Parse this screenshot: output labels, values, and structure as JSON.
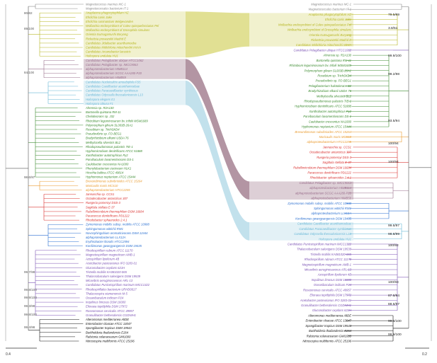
{
  "palette": {
    "olive": "#b5b51e",
    "purple": "#7b52b4",
    "green": "#3a8a2e",
    "lightblue": "#66b6d6",
    "orange": "#e99a2e",
    "red": "#d9302e",
    "blue": "#2a6fd0",
    "mauve": "#9a6e8c",
    "teal": "#2e8c86",
    "gray": "#8a8a8a",
    "black": "#111111"
  },
  "scale_bars": {
    "left": "0.4",
    "right": "0.2"
  },
  "support_labels": {
    "left": [
      "80/82",
      "89/100",
      "84/100",
      "98.6/97",
      "99.7/99",
      "99.8/100",
      "99.9/100",
      "99.3/99",
      "99.8/100",
      "99.4/98"
    ],
    "right": [
      "79.5/89",
      "3.8/51",
      "99.9/100",
      "99.2/98",
      "93.5/94",
      "100/94",
      "100/94",
      "99.6/97",
      "98.8/99",
      "100/92",
      "100/93",
      "87.6/94",
      "88.6/97",
      "99.8/100",
      "99.9/100"
    ]
  },
  "left_taxa": [
    {
      "name": "Magnetococcus marinus MC-1",
      "c": "gray"
    },
    {
      "name": "Magnetococcales bacterium IT-1",
      "c": "gray"
    },
    {
      "name": "Anaplasma phagocytophilum HZ",
      "c": "olive"
    },
    {
      "name": "Ehrlichia canis Jake",
      "c": "olive"
    },
    {
      "name": "Ehrlichia ruminantium Welgevonden",
      "c": "olive"
    },
    {
      "name": "Wolbachia endosymbiont of Culex quinquefasciatus Pel",
      "c": "olive"
    },
    {
      "name": "Wolbachia endosymbiont of Drosophila simulans",
      "c": "olive"
    },
    {
      "name": "Orientia tsutsugamushi Boryong",
      "c": "olive"
    },
    {
      "name": "Rickettsia prowazekii Madrid E",
      "c": "olive"
    },
    {
      "name": "Candidatus Jidaibacter acanthamoeba",
      "c": "olive"
    },
    {
      "name": "Candidatus Midichloria mitochondrii IricVA",
      "c": "olive"
    },
    {
      "name": "Candidatus Arcanobacter lacustris",
      "c": "olive"
    },
    {
      "name": "Holospora undulata HU1",
      "c": "olive"
    },
    {
      "name": "Candidatus Pelagibacter ubique HTCC1062",
      "c": "mauve"
    },
    {
      "name": "Candidatus Pelagibacter sp. IMCC9063",
      "c": "mauve"
    },
    {
      "name": "alphaproteobacterium HIMB114",
      "c": "mauve"
    },
    {
      "name": "alphaproteobacterium SCGC AAA280-P20",
      "c": "mauve"
    },
    {
      "name": "alphaproteobacterium HIMB59",
      "c": "mauve"
    },
    {
      "name": "Candidatus Nucleicultrix amoebiphila FS5",
      "c": "lightblue"
    },
    {
      "name": "Candidatus Caedibacter acanthamoebae",
      "c": "lightblue"
    },
    {
      "name": "Candidatus Paracaedibacter symbiosus",
      "c": "lightblue"
    },
    {
      "name": "Candidatus Odyssella thessalonicensis L13",
      "c": "lightblue"
    },
    {
      "name": "Holospora elegans E1",
      "c": "lightblue"
    },
    {
      "name": "Holospora obtusa F1",
      "c": "lightblue"
    },
    {
      "name": "Ahrensia sp. R2A130",
      "c": "green"
    },
    {
      "name": "Bartonella quintana RM-11",
      "c": "green"
    },
    {
      "name": "Chelativorans sp. J32",
      "c": "green"
    },
    {
      "name": "Rhizobium leguminosarum bv. trifolii WSM1689",
      "c": "green"
    },
    {
      "name": "Polymorphum gilvum SL003B-26A1",
      "c": "green"
    },
    {
      "name": "Roseibium sp. TrichSKD4",
      "c": "green"
    },
    {
      "name": "Pseudovibrio sp. FO-BEG1",
      "c": "green"
    },
    {
      "name": "Bradyrhizobium elkanii USDA 76",
      "c": "green"
    },
    {
      "name": "Methylocella silvestris BL2",
      "c": "green"
    },
    {
      "name": "Rhodopseudomonas palustris TIE-1",
      "c": "green"
    },
    {
      "name": "Hyphomicrobium denitrificans ATCC 51888",
      "c": "green"
    },
    {
      "name": "Xanthobacter autotrophicus Py2",
      "c": "green"
    },
    {
      "name": "Parvibaculum lavamentivorans DS-1",
      "c": "green"
    },
    {
      "name": "Caulobacter crescentus NA1000",
      "c": "green"
    },
    {
      "name": "Phenylobacterium zucineum HLK1",
      "c": "green"
    },
    {
      "name": "Hirschia baltica ATCC 49814",
      "c": "green"
    },
    {
      "name": "Hyphomonas neptunium ATCC 15444",
      "c": "green"
    },
    {
      "name": "Brevundimonas subvibrioides ATCC 15264",
      "c": "orange"
    },
    {
      "name": "Maricaulis maris MCS10",
      "c": "orange"
    },
    {
      "name": "alphaproteobacterium HTCC2255",
      "c": "orange"
    },
    {
      "name": "Jannaschia sp. CCS1",
      "c": "red"
    },
    {
      "name": "Octadecabacter antarcticus 307",
      "c": "red"
    },
    {
      "name": "Ruegeria pomeroyi DSS-3",
      "c": "red"
    },
    {
      "name": "Sagittula stellata E-37",
      "c": "red"
    },
    {
      "name": "Rubellimicrobium thermophilum DSM 16684",
      "c": "red"
    },
    {
      "name": "Paracoccus denitrificans PD1222",
      "c": "red"
    },
    {
      "name": "Rhodobacter sphaeroides 2.4.1",
      "c": "red"
    },
    {
      "name": "Zymomonas mobilis subsp. mobilis ATCC 10988",
      "c": "blue"
    },
    {
      "name": "Sphingomonas wittichii RW1",
      "c": "blue"
    },
    {
      "name": "Novosphingobium aromaticivorans DSM 12444",
      "c": "blue"
    },
    {
      "name": "alphaproteobacterium LLX12A",
      "c": "blue"
    },
    {
      "name": "Erythrobacter litoralis HTCC2594",
      "c": "blue"
    },
    {
      "name": "Kordiimonas gwangyangensis DSM 19435",
      "c": "blue"
    },
    {
      "name": "Rhodospirillum rubrum ATCC 11170",
      "c": "purple"
    },
    {
      "name": "Magnetospirillum magneticum AMB-1",
      "c": "purple"
    },
    {
      "name": "Azospirillum lipoferum 4B",
      "c": "purple"
    },
    {
      "name": "Acetobacter pasteurianus IFO 3283-01",
      "c": "purple"
    },
    {
      "name": "Gluconobacter oxydans 621H",
      "c": "purple"
    },
    {
      "name": "Tistrella mobilis KA081020-065",
      "c": "purple"
    },
    {
      "name": "Thalassobaculum salexigens DSM 19539",
      "c": "purple"
    },
    {
      "name": "Micavibrio aeruginosavorus ARL-13",
      "c": "purple"
    },
    {
      "name": "Candidatus Puniceispirillum marinum IMCC1322",
      "c": "purple"
    },
    {
      "name": "Rhodospirillales bacterium URHD0017",
      "c": "purple"
    },
    {
      "name": "Thalassospira xiamenensis M-5",
      "c": "purple"
    },
    {
      "name": "Oceanibaculum indicum P24",
      "c": "purple"
    },
    {
      "name": "Inquilinus limosus DSM 16000",
      "c": "purple"
    },
    {
      "name": "Elioraea tepidiphila DSM 17972",
      "c": "purple"
    },
    {
      "name": "Roseomonas cervicalis ATCC 49957",
      "c": "purple"
    },
    {
      "name": "Granulibacter bethesdensis CGDNIH1",
      "c": "purple"
    },
    {
      "name": "Alteromonas mediterranea AltDE",
      "c": "black"
    },
    {
      "name": "Enterobacter cloacae ATCC 13047",
      "c": "black"
    },
    {
      "name": "Spongiibacter tropicus DSM 19543",
      "c": "black"
    },
    {
      "name": "Burkholderia thailandensis E264",
      "c": "black"
    },
    {
      "name": "Ralstonia solanacearum GMI1000",
      "c": "black"
    },
    {
      "name": "Nitrosospira multiformis ATCC 25196",
      "c": "black"
    }
  ],
  "right_taxa": [
    {
      "name": "Magnetococcus marinus MC-1",
      "c": "gray"
    },
    {
      "name": "Magnetococcales bacterium IT-1",
      "c": "gray"
    },
    {
      "name": "Anaplasma phagocytophilum HZ",
      "c": "olive"
    },
    {
      "name": "Ehrlichia canis Jake",
      "c": "olive"
    },
    {
      "name": "Wolbachia endosymbiont of Culex quinquefasciatus Pel",
      "c": "olive"
    },
    {
      "name": "Wolbachia endosymbiont of Drosophila simulans",
      "c": "olive"
    },
    {
      "name": "Orientia tsutsugamushi Boryong",
      "c": "olive"
    },
    {
      "name": "Rickettsia prowazekii Madrid E",
      "c": "olive"
    },
    {
      "name": "Candidatus Midichloria mitochondrii IricVA",
      "c": "olive"
    },
    {
      "name": "Candidatus Pelagibacter ubique HTCC1062",
      "c": "purple"
    },
    {
      "name": "Ahrensia sp. R2A130",
      "c": "green"
    },
    {
      "name": "Bartonella quintana RM-11",
      "c": "green"
    },
    {
      "name": "Rhizobium leguminosarum bv. trifolii WSM1689",
      "c": "green"
    },
    {
      "name": "Polymorphum gilvum SL003B-26A1",
      "c": "green"
    },
    {
      "name": "Roseibium sp. TrichSKD4",
      "c": "green"
    },
    {
      "name": "Pseudovibrio sp. FO-BEG1",
      "c": "green"
    },
    {
      "name": "Pelagibacterium halotolerans B2",
      "c": "green"
    },
    {
      "name": "Bradyrhizobium elkanii USDA 76",
      "c": "green"
    },
    {
      "name": "Methylocella silvestris BL2",
      "c": "green"
    },
    {
      "name": "Rhodopseudomonas palustris TIE-1",
      "c": "green"
    },
    {
      "name": "Hyphomicrobium denitrificans ATCC 51888",
      "c": "green"
    },
    {
      "name": "Xanthobacter autotrophicus Py2",
      "c": "green"
    },
    {
      "name": "Parvibaculum lavamentivorans DS-1",
      "c": "green"
    },
    {
      "name": "Caulobacter crescentus NA1000",
      "c": "green"
    },
    {
      "name": "Hyphomonas neptunium ATCC 15444",
      "c": "green"
    },
    {
      "name": "Brevundimonas subvibrioides ATCC 15264",
      "c": "orange"
    },
    {
      "name": "Maricaulis maris MCS10",
      "c": "orange"
    },
    {
      "name": "alphaproteobacterium HTCC2255",
      "c": "orange"
    },
    {
      "name": "Jannaschia sp. CCS1",
      "c": "red"
    },
    {
      "name": "Octadecabacter antarcticus 307",
      "c": "red"
    },
    {
      "name": "Ruegeria pomeroyi DSS-3",
      "c": "red"
    },
    {
      "name": "Sagittula stellata E-37",
      "c": "red"
    },
    {
      "name": "Rubellimicrobium thermophilum DSM 16684",
      "c": "red"
    },
    {
      "name": "Paracoccus denitrificans PD1222",
      "c": "red"
    },
    {
      "name": "Rhodobacter sphaeroides 2.4.1",
      "c": "red"
    },
    {
      "name": "Candidatus Pelagibacter sp. IMCC9063",
      "c": "mauve"
    },
    {
      "name": "alphaproteobacterium HIMB114",
      "c": "mauve"
    },
    {
      "name": "alphaproteobacterium SCGC AAA280-P20",
      "c": "mauve"
    },
    {
      "name": "alphaproteobacterium HIMB59",
      "c": "mauve"
    },
    {
      "name": "Zymomonas mobilis subsp. mobilis ATCC 10988",
      "c": "blue"
    },
    {
      "name": "Sphingomonas wittichii RW1",
      "c": "blue"
    },
    {
      "name": "alphaproteobacterium LLX12A",
      "c": "blue"
    },
    {
      "name": "Kordiimonas gwangyangensis DSM 19435",
      "c": "blue"
    },
    {
      "name": "Candidatus Caedibacter acanthamoebae",
      "c": "lightblue"
    },
    {
      "name": "Candidatus Paracaedibacter symbiosus",
      "c": "lightblue"
    },
    {
      "name": "Candidatus Odyssella thessalonicensis L13",
      "c": "lightblue"
    },
    {
      "name": "Holospora undulata HU1",
      "c": "lightblue"
    },
    {
      "name": "Candidatus Puniceispirillum marinum IMCC1322",
      "c": "purple"
    },
    {
      "name": "Thalassobaculum salexigens DSM 19539",
      "c": "purple"
    },
    {
      "name": "Tistrella mobilis KA081020-065",
      "c": "purple"
    },
    {
      "name": "Rhodospirillum rubrum ATCC 11170",
      "c": "purple"
    },
    {
      "name": "Magnetospirillum magneticum AMB-1",
      "c": "purple"
    },
    {
      "name": "Micavibrio aeruginosavorus ARL-13",
      "c": "purple"
    },
    {
      "name": "Azospirillum lipoferum 4B",
      "c": "purple"
    },
    {
      "name": "Inquilinus limosus DSM 16000",
      "c": "purple"
    },
    {
      "name": "Oceanibaculum indicum P24",
      "c": "purple"
    },
    {
      "name": "Roseomonas cervicalis ATCC 49957",
      "c": "purple"
    },
    {
      "name": "Elioraea tepidiphila DSM 17972",
      "c": "purple"
    },
    {
      "name": "Acetobacter pasteurianus IFO 3283-01",
      "c": "purple"
    },
    {
      "name": "Granulibacter bethesdensis CGDNIH1",
      "c": "purple"
    },
    {
      "name": "Gluconobacter oxydans 621H",
      "c": "purple"
    },
    {
      "name": "Alteromonas mediterranea AltDE",
      "c": "black"
    },
    {
      "name": "Enterobacter cloacae ATCC 13047",
      "c": "black"
    },
    {
      "name": "Spongiibacter tropicus DSM 19543",
      "c": "black"
    },
    {
      "name": "Burkholderia thailandensis E264",
      "c": "black"
    },
    {
      "name": "Ralstonia solanacearum GMI1000",
      "c": "black"
    },
    {
      "name": "Nitrosospira multiformis ATCC 25196",
      "c": "black"
    }
  ]
}
